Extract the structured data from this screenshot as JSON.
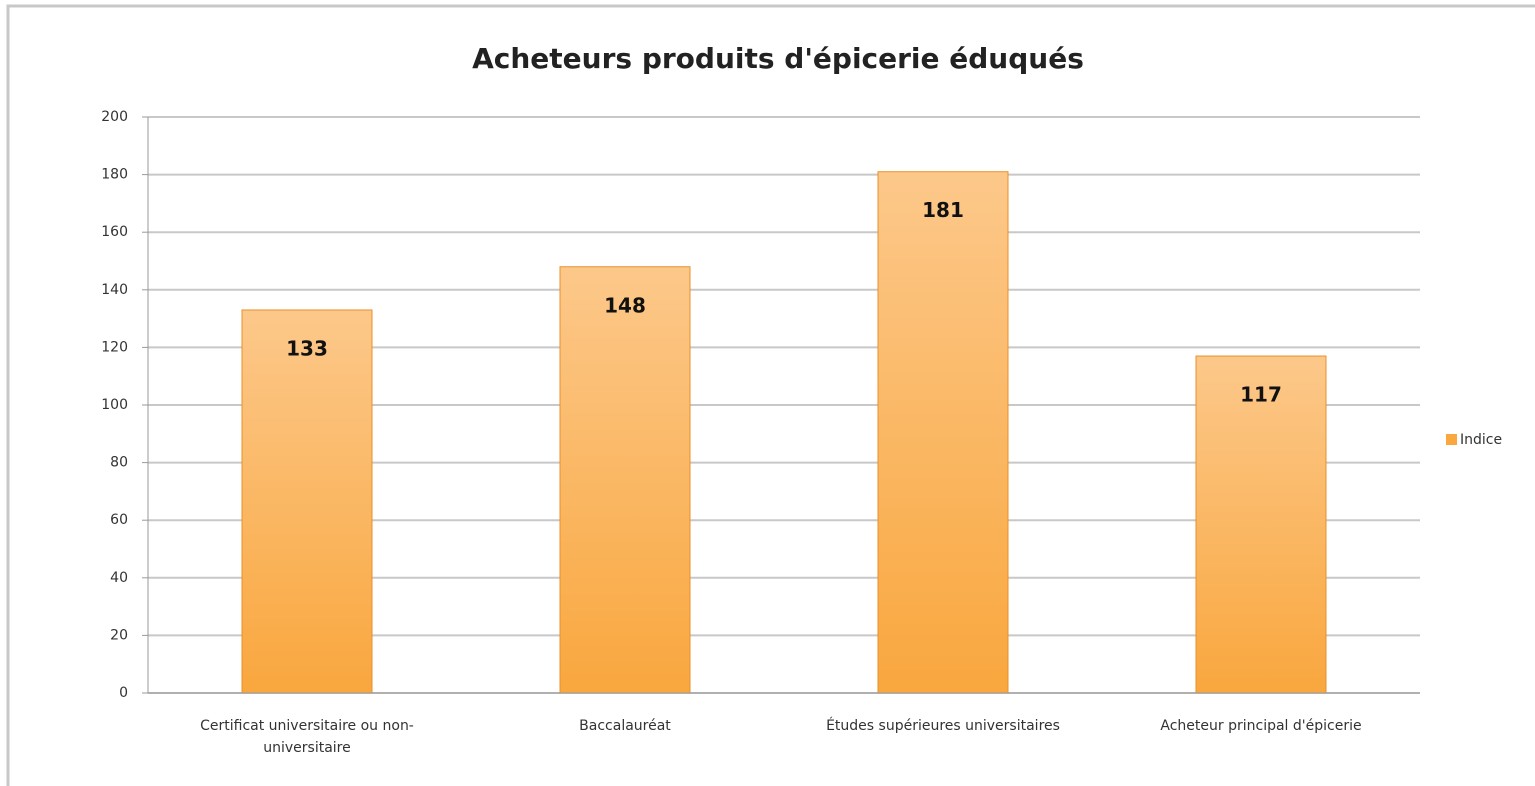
{
  "chart_data": {
    "type": "bar",
    "title": "Acheteurs produits d'épicerie éduqués",
    "categories": [
      "Certificat universitaire ou non-universitaire",
      "Baccalauréat",
      "Études supérieures universitaires",
      "Acheteur principal d'épicerie"
    ],
    "series": [
      {
        "name": "Indice",
        "color": "#f9a73e",
        "values": [
          133,
          148,
          181,
          117
        ]
      }
    ],
    "ylim": [
      0,
      200
    ],
    "yticks": [
      0,
      20,
      40,
      60,
      80,
      100,
      120,
      140,
      160,
      180,
      200
    ],
    "grid": true,
    "legend": "right"
  }
}
